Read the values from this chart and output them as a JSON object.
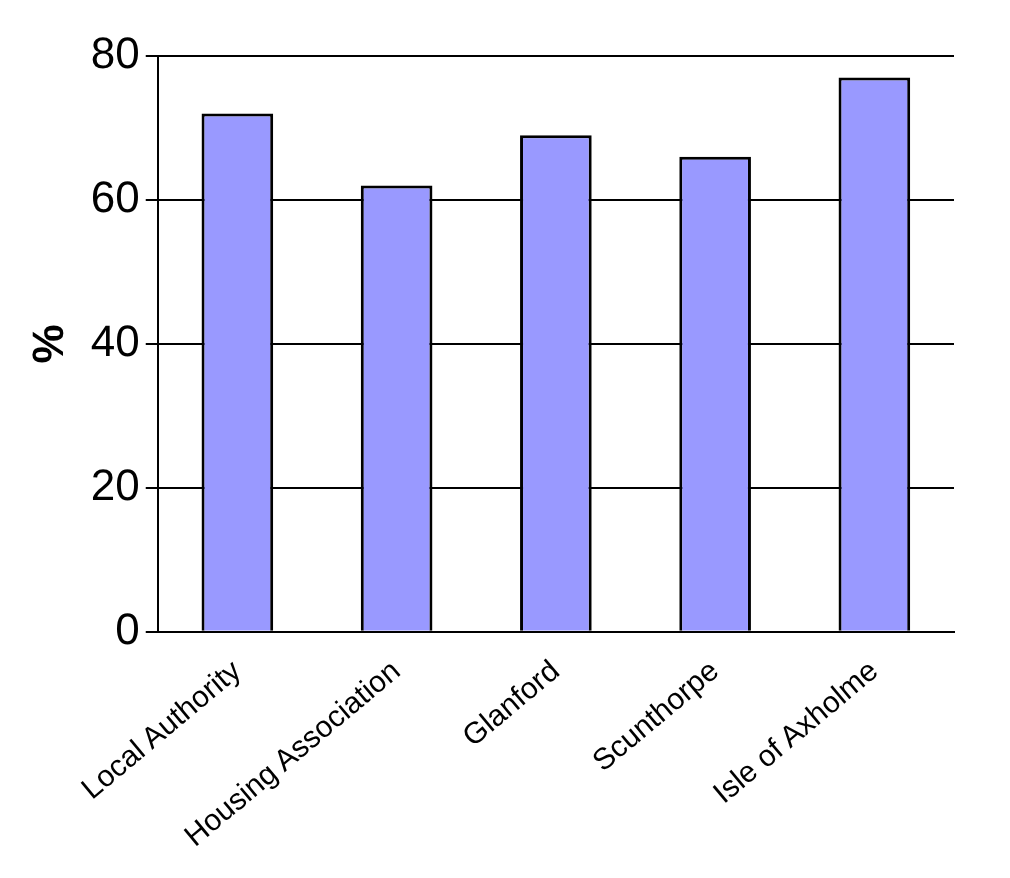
{
  "chart_data": {
    "type": "bar",
    "ylabel": "%",
    "categories": [
      "Local Authority",
      "Housing Association",
      "Glanford",
      "Scunthorpe",
      "Isle of Axholme"
    ],
    "values": [
      72,
      62,
      69,
      66,
      77
    ],
    "color": "#9999ff",
    "ylim": [
      0,
      80
    ],
    "yticks": [
      0,
      20,
      40,
      60,
      80
    ],
    "grid": "y"
  }
}
